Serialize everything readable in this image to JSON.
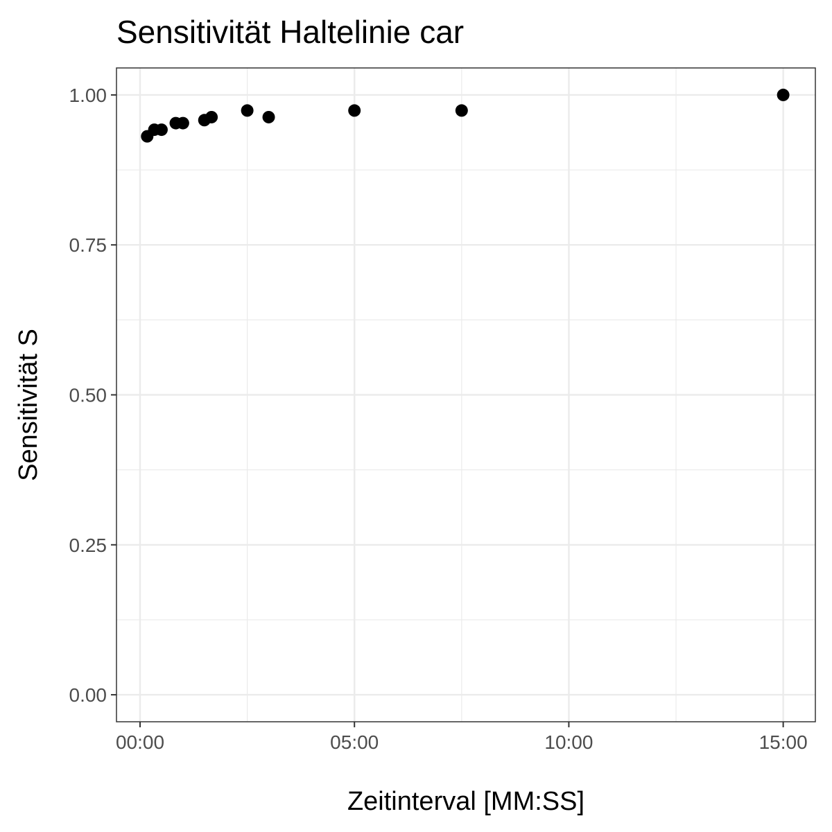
{
  "chart_data": {
    "type": "scatter",
    "title": "Sensitivität Haltelinie car",
    "xlabel": "Zeitinterval [MM:SS]",
    "ylabel": "Sensitivität S",
    "x_unit": "MM:SS",
    "xlim": [
      "-00:33",
      "15:45"
    ],
    "ylim": [
      -0.045,
      1.045
    ],
    "x_ticks": [
      "00:00",
      "05:00",
      "10:00",
      "15:00"
    ],
    "x_minor_ticks": [
      "02:30",
      "07:30",
      "12:30"
    ],
    "y_ticks": [
      "0.00",
      "0.25",
      "0.50",
      "0.75",
      "1.00"
    ],
    "y_minor_ticks": [
      0.125,
      0.375,
      0.625,
      0.875
    ],
    "grid": true,
    "point_color": "#000000",
    "series": [
      {
        "points": [
          {
            "x": "00:10",
            "y": 0.931
          },
          {
            "x": "00:20",
            "y": 0.942
          },
          {
            "x": "00:30",
            "y": 0.942
          },
          {
            "x": "00:50",
            "y": 0.953
          },
          {
            "x": "01:00",
            "y": 0.953
          },
          {
            "x": "01:30",
            "y": 0.958
          },
          {
            "x": "01:40",
            "y": 0.963
          },
          {
            "x": "02:30",
            "y": 0.974
          },
          {
            "x": "03:00",
            "y": 0.963
          },
          {
            "x": "05:00",
            "y": 0.974
          },
          {
            "x": "07:30",
            "y": 0.974
          },
          {
            "x": "15:00",
            "y": 1.0
          }
        ]
      }
    ]
  }
}
